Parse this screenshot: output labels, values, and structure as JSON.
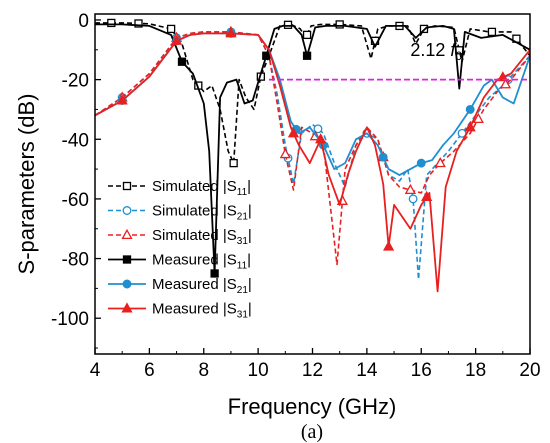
{
  "figure": {
    "caption": "(a)"
  },
  "chart_data": {
    "type": "line",
    "xlabel": "Frequency (GHz)",
    "ylabel": "S-parameters (dB)",
    "xlim": [
      4,
      20
    ],
    "ylim": [
      -112,
      2
    ],
    "xticks": [
      4,
      6,
      8,
      10,
      12,
      14,
      16,
      18,
      20
    ],
    "yticks": [
      0,
      -20,
      -40,
      -60,
      -80,
      -100
    ],
    "grid": false,
    "legend_position": "bottom-left",
    "annotation": {
      "text_main": "2.12",
      "text_italic": "f",
      "text_sub": "0",
      "line_x": [
        10.4,
        20
      ],
      "line_y": -20,
      "color": "#e020e0"
    },
    "series": [
      {
        "label_main": "Simulated |S",
        "label_sub": "11",
        "label_end": "|",
        "color": "#000000",
        "style": "dash",
        "marker": "square-open",
        "x": [
          4,
          5,
          6,
          6.8,
          7.2,
          7.6,
          8.0,
          8.3,
          8.6,
          8.9,
          9.1,
          9.3,
          9.55,
          9.85,
          10.1,
          10.4,
          10.8,
          11.2,
          11.55,
          11.75,
          11.95,
          12.3,
          13,
          13.8,
          14.15,
          14.4,
          14.8,
          15.5,
          15.8,
          16.1,
          16.5,
          17.2,
          17.5,
          17.8,
          18.5,
          19.3,
          20
        ],
        "y": [
          -1,
          -1,
          -1.3,
          -3,
          -8,
          -20,
          -24,
          -22,
          -30,
          -44,
          -48,
          -20,
          -26,
          -30,
          -19,
          -12,
          -2,
          -1.5,
          -3,
          -6,
          -2,
          -1.5,
          -1.5,
          -2,
          -13,
          -3,
          -2,
          -2,
          -8,
          -3,
          -2,
          -2.5,
          -14,
          -3,
          -4,
          -4,
          -12
        ],
        "marker_x": [
          4.6,
          5.6,
          6.8,
          7.8,
          9.1,
          10.1,
          11.1,
          11.8,
          13,
          14.3,
          15.2,
          16.1,
          17.4,
          18.6,
          19.5
        ]
      },
      {
        "label_main": "Simulated |S",
        "label_sub": "21",
        "label_end": "|",
        "color": "#1f8fd0",
        "style": "dash",
        "marker": "circle-open",
        "x": [
          4,
          5,
          6,
          6.5,
          7,
          7.5,
          8,
          9,
          10,
          10.4,
          10.7,
          11.0,
          11.3,
          11.6,
          12.0,
          12.4,
          12.8,
          13.2,
          13.6,
          14.0,
          14.4,
          14.8,
          15.2,
          15.5,
          15.7,
          15.9,
          16.2,
          16.6,
          17,
          17.5,
          18,
          18.5,
          19,
          20
        ],
        "y": [
          -32,
          -26,
          -18,
          -12,
          -6,
          -4.5,
          -4,
          -4,
          -5,
          -12,
          -25,
          -42,
          -55,
          -38,
          -35,
          -38,
          -48,
          -56,
          -42,
          -38,
          -40,
          -52,
          -54,
          -50,
          -60,
          -87,
          -52,
          -48,
          -44,
          -38,
          -32,
          -26,
          -22,
          -12
        ],
        "marker_x": [
          5,
          7,
          9,
          11.1,
          12.2,
          14,
          15.7,
          17.5,
          19.2
        ]
      },
      {
        "label_main": "Simulated |S",
        "label_sub": "31",
        "label_end": "|",
        "color": "#e82020",
        "style": "dash",
        "marker": "triangle-open",
        "x": [
          4,
          5,
          6,
          6.5,
          7,
          7.5,
          8,
          9,
          10,
          10.4,
          10.7,
          11.0,
          11.3,
          11.6,
          12.0,
          12.4,
          12.9,
          13.2,
          13.6,
          14.0,
          14.4,
          14.8,
          15.2,
          15.6,
          16.0,
          16.3,
          16.7,
          17.2,
          17.8,
          18.3,
          18.8,
          19.3,
          20
        ],
        "y": [
          -32,
          -26,
          -18,
          -12,
          -6,
          -4.5,
          -4,
          -4,
          -5,
          -12,
          -28,
          -45,
          -57,
          -36,
          -38,
          -42,
          -82,
          -50,
          -42,
          -36,
          -40,
          -52,
          -56,
          -57,
          -58,
          -52,
          -48,
          -44,
          -38,
          -30,
          -24,
          -20,
          -12
        ],
        "marker_x": [
          5,
          7,
          9,
          11,
          12.1,
          13.1,
          14.6,
          15.6,
          16.7,
          18.1,
          19.1
        ]
      },
      {
        "label_main": "Measured |S",
        "label_sub": "11",
        "label_end": "|",
        "color": "#000000",
        "style": "solid",
        "marker": "square-filled",
        "x": [
          4,
          5,
          6,
          6.8,
          7.2,
          7.6,
          8.0,
          8.2,
          8.4,
          8.6,
          8.85,
          9.2,
          9.5,
          9.8,
          10.1,
          10.3,
          10.6,
          10.9,
          11.3,
          11.6,
          11.8,
          12.1,
          12.5,
          13.2,
          14,
          14.3,
          14.7,
          15.4,
          15.8,
          16.2,
          16.8,
          17.2,
          17.4,
          17.6,
          18.2,
          19,
          20
        ],
        "y": [
          -1.5,
          -1.5,
          -2,
          -5,
          -14,
          -18,
          -28,
          -44,
          -85,
          -26,
          -21,
          -20,
          -28,
          -27,
          -18,
          -12,
          -3,
          -2,
          -2,
          -5,
          -12,
          -2.5,
          -2,
          -2,
          -3,
          -9,
          -2,
          -2,
          -6,
          -2.5,
          -2,
          -3,
          -23,
          -4,
          -6,
          -5,
          -10
        ],
        "marker_x": [
          7.2,
          8.4,
          10.3,
          11.8
        ]
      },
      {
        "label_main": "Measured |S",
        "label_sub": "21",
        "label_end": "|",
        "color": "#1f8fd0",
        "style": "solid",
        "marker": "circle-filled",
        "x": [
          4,
          5,
          6,
          6.5,
          7,
          7.5,
          8,
          9,
          10,
          10.4,
          10.8,
          11.2,
          11.5,
          11.9,
          12.4,
          12.8,
          13.2,
          13.6,
          14.0,
          14.4,
          14.8,
          15.2,
          15.6,
          16.0,
          16.4,
          16.8,
          17.2,
          17.8,
          18.3,
          18.6,
          19.0,
          19.4,
          20
        ],
        "y": [
          -32,
          -27,
          -19,
          -13,
          -7,
          -5,
          -4.5,
          -4.5,
          -5,
          -10,
          -20,
          -34,
          -38,
          -36,
          -42,
          -50,
          -48,
          -40,
          -38,
          -42,
          -50,
          -52,
          -50,
          -48,
          -47,
          -42,
          -38,
          -30,
          -22,
          -20,
          -26,
          -28,
          -12
        ],
        "marker_x": [
          5,
          7,
          9,
          11.4,
          12.4,
          14.6,
          16.0,
          17.8
        ]
      },
      {
        "label_main": "Measured |S",
        "label_sub": "31",
        "label_end": "|",
        "color": "#e82020",
        "style": "solid",
        "marker": "triangle-filled",
        "x": [
          4,
          5,
          6,
          6.5,
          7,
          7.5,
          8,
          9,
          10,
          10.4,
          10.8,
          11.2,
          11.5,
          11.9,
          12.3,
          12.6,
          13.0,
          13.3,
          13.6,
          14.0,
          14.3,
          14.6,
          14.8,
          15.0,
          15.3,
          15.6,
          16.0,
          16.3,
          16.6,
          16.9,
          17.3,
          17.8,
          18.3,
          18.8,
          19.3,
          20
        ],
        "y": [
          -32,
          -27,
          -19,
          -13,
          -7,
          -5,
          -4.5,
          -4.5,
          -5,
          -10,
          -22,
          -36,
          -42,
          -48,
          -40,
          -52,
          -62,
          -52,
          -44,
          -36,
          -42,
          -55,
          -76,
          -62,
          -66,
          -70,
          -62,
          -58,
          -91,
          -56,
          -44,
          -36,
          -26,
          -20,
          -18,
          -10
        ],
        "marker_x": [
          5,
          7,
          9,
          11.3,
          12.3,
          14.8,
          16.2,
          17.8,
          19.0
        ]
      }
    ]
  }
}
